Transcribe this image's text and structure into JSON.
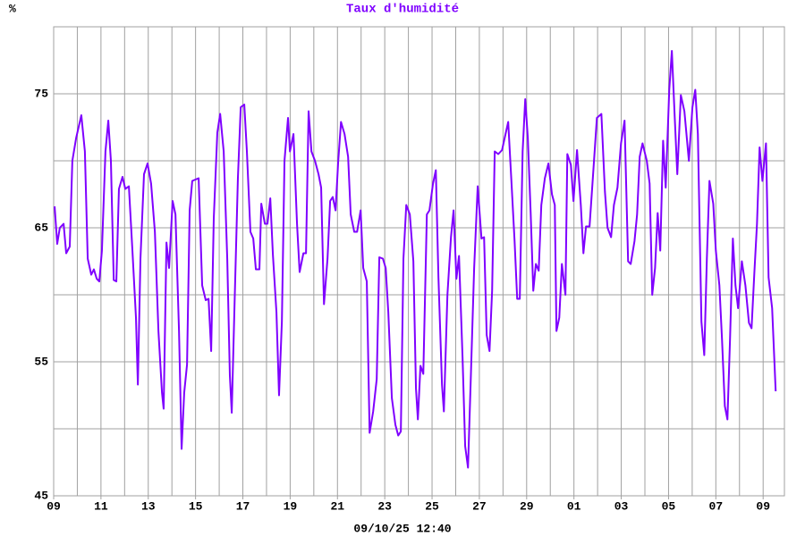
{
  "chart_data": {
    "type": "line",
    "title": "Taux d'humidité",
    "ylabel": "%",
    "xlabel": "09/10/25 12:40",
    "xlim": [
      0,
      30.9
    ],
    "ylim": [
      45,
      80
    ],
    "xticks": [
      {
        "value": 0,
        "label": "09"
      },
      {
        "value": 2,
        "label": "11"
      },
      {
        "value": 4,
        "label": "13"
      },
      {
        "value": 6,
        "label": "15"
      },
      {
        "value": 8,
        "label": "17"
      },
      {
        "value": 10,
        "label": "19"
      },
      {
        "value": 12,
        "label": "21"
      },
      {
        "value": 14,
        "label": "23"
      },
      {
        "value": 16,
        "label": "25"
      },
      {
        "value": 18,
        "label": "27"
      },
      {
        "value": 20,
        "label": "29"
      },
      {
        "value": 22,
        "label": "01"
      },
      {
        "value": 24,
        "label": "03"
      },
      {
        "value": 26,
        "label": "05"
      },
      {
        "value": 28,
        "label": "07"
      },
      {
        "value": 30,
        "label": "09"
      }
    ],
    "xgrid": [
      0,
      1,
      2,
      3,
      4,
      5,
      6,
      7,
      8,
      9,
      10,
      11,
      12,
      13,
      14,
      15,
      16,
      17,
      18,
      19,
      20,
      21,
      22,
      23,
      24,
      25,
      26,
      27,
      28,
      29,
      30
    ],
    "yticks": [
      45,
      55,
      65,
      75
    ],
    "ygrid": [
      50,
      60,
      70,
      80
    ],
    "grid": true,
    "x": [
      0.04,
      0.15,
      0.26,
      0.42,
      0.53,
      0.68,
      0.79,
      0.95,
      1.17,
      1.32,
      1.44,
      1.59,
      1.7,
      1.82,
      1.93,
      2.04,
      2.19,
      2.31,
      2.42,
      2.54,
      2.65,
      2.76,
      2.91,
      3.03,
      3.18,
      3.33,
      3.48,
      3.56,
      3.67,
      3.82,
      3.97,
      4.12,
      4.28,
      4.43,
      4.58,
      4.65,
      4.77,
      4.88,
      5.03,
      5.15,
      5.3,
      5.41,
      5.52,
      5.64,
      5.75,
      5.86,
      6.13,
      6.28,
      6.43,
      6.55,
      6.66,
      6.77,
      6.92,
      7.04,
      7.19,
      7.34,
      7.45,
      7.53,
      7.64,
      7.79,
      7.91,
      8.06,
      8.17,
      8.32,
      8.44,
      8.55,
      8.7,
      8.78,
      8.93,
      9.04,
      9.16,
      9.27,
      9.42,
      9.53,
      9.65,
      9.76,
      9.91,
      9.99,
      10.14,
      10.29,
      10.4,
      10.56,
      10.67,
      10.78,
      10.9,
      11.05,
      11.2,
      11.31,
      11.43,
      11.58,
      11.69,
      11.8,
      11.92,
      12.03,
      12.15,
      12.3,
      12.45,
      12.56,
      12.71,
      12.83,
      12.98,
      13.09,
      13.24,
      13.36,
      13.51,
      13.66,
      13.77,
      13.92,
      14.04,
      14.15,
      14.3,
      14.45,
      14.57,
      14.68,
      14.79,
      14.91,
      15.06,
      15.21,
      15.32,
      15.4,
      15.51,
      15.63,
      15.78,
      15.89,
      16.04,
      16.16,
      16.27,
      16.42,
      16.5,
      16.65,
      16.8,
      16.91,
      17.03,
      17.14,
      17.29,
      17.4,
      17.52,
      17.63,
      17.78,
      17.93,
      18.09,
      18.2,
      18.31,
      18.43,
      18.54,
      18.65,
      18.8,
      18.96,
      19.07,
      19.22,
      19.37,
      19.49,
      19.6,
      19.71,
      19.83,
      19.94,
      20.05,
      20.17,
      20.28,
      20.39,
      20.51,
      20.62,
      20.77,
      20.92,
      21.07,
      21.19,
      21.26,
      21.38,
      21.49,
      21.64,
      21.72,
      21.87,
      21.98,
      22.13,
      22.29,
      22.4,
      22.51,
      22.66,
      22.81,
      22.97,
      23.16,
      23.31,
      23.42,
      23.57,
      23.69,
      23.84,
      23.99,
      24.14,
      24.29,
      24.4,
      24.56,
      24.67,
      24.78,
      24.9,
      25.08,
      25.2,
      25.31,
      25.43,
      25.54,
      25.65,
      25.77,
      25.88,
      26.03,
      26.14,
      26.26,
      26.37,
      26.52,
      26.67,
      26.86,
      27.01,
      27.13,
      27.24,
      27.39,
      27.51,
      27.62,
      27.73,
      27.89,
      28.0,
      28.15,
      28.26,
      28.38,
      28.49,
      28.6,
      28.72,
      28.83,
      28.94,
      29.1,
      29.25,
      29.4,
      29.51,
      29.63,
      29.74,
      29.85,
      29.97,
      30.12,
      30.23,
      30.38,
      30.53
    ],
    "series": [
      {
        "color": "#7f00ff",
        "values": [
          66.6,
          63.8,
          65,
          65.3,
          63.1,
          63.6,
          70,
          71.7,
          73.4,
          70.7,
          62.7,
          61.5,
          61.9,
          61.2,
          61,
          63.3,
          70.7,
          73,
          70,
          61.1,
          61,
          67.9,
          68.8,
          67.9,
          68.1,
          63.3,
          58.3,
          53.3,
          62.7,
          69,
          69.8,
          68.3,
          64.7,
          57.3,
          52.7,
          51.5,
          63.9,
          62,
          67,
          66,
          57.3,
          48.5,
          52.7,
          54.8,
          66.3,
          68.5,
          68.7,
          60.7,
          59.6,
          59.7,
          55.8,
          65.7,
          72.1,
          73.5,
          70.7,
          62.7,
          54,
          51.2,
          58.7,
          68.7,
          74,
          74.2,
          70.7,
          64.7,
          64.2,
          61.9,
          61.9,
          66.8,
          65.3,
          65.3,
          67.2,
          63,
          58.7,
          52.5,
          58,
          70,
          73.2,
          70.7,
          72,
          65.3,
          61.7,
          63.1,
          63.1,
          73.7,
          70.7,
          70,
          69,
          68,
          59.3,
          62.7,
          67,
          67.3,
          66.3,
          69.9,
          72.9,
          72,
          70.3,
          66,
          64.7,
          64.7,
          66.3,
          62,
          61,
          49.7,
          51.3,
          53.7,
          62.8,
          62.7,
          62,
          58.7,
          52.3,
          50.3,
          49.5,
          49.8,
          62.7,
          66.7,
          66,
          62.5,
          53,
          50.7,
          54.7,
          54.1,
          66,
          66.3,
          68.3,
          69.3,
          61.3,
          53.3,
          51.3,
          60,
          64.3,
          66.3,
          61.2,
          62.9,
          55.3,
          48.7,
          47.1,
          53.3,
          62,
          68.1,
          64.2,
          64.3,
          57,
          55.8,
          60.3,
          70.7,
          70.5,
          70.8,
          71.7,
          72.9,
          68,
          64,
          59.7,
          59.7,
          70.7,
          74.6,
          71.7,
          66.1,
          60.3,
          62.3,
          61.8,
          66.7,
          68.7,
          69.8,
          67.5,
          66.7,
          57.3,
          58.3,
          62.3,
          60,
          70.5,
          69.7,
          67,
          70.8,
          66.7,
          63.1,
          65.1,
          65.1,
          69,
          73.2,
          73.5,
          67.7,
          65,
          64.3,
          66.7,
          68,
          71.3,
          73,
          62.5,
          62.3,
          64,
          66,
          70.3,
          71.3,
          70,
          68.3,
          60,
          62,
          66.1,
          63.3,
          71.5,
          68,
          75.3,
          78.2,
          73.3,
          69,
          74.9,
          73.7,
          70,
          74,
          75.3,
          72,
          58,
          55.5,
          62.7,
          68.5,
          66.8,
          63.3,
          60.7,
          56.7,
          51.7,
          50.7,
          56.7,
          64.2,
          60.7,
          59,
          62.5,
          60.7,
          57.9,
          57.5,
          61.7,
          65.3,
          71,
          68.5,
          71.3,
          61.3,
          59,
          52.8
        ]
      }
    ]
  }
}
